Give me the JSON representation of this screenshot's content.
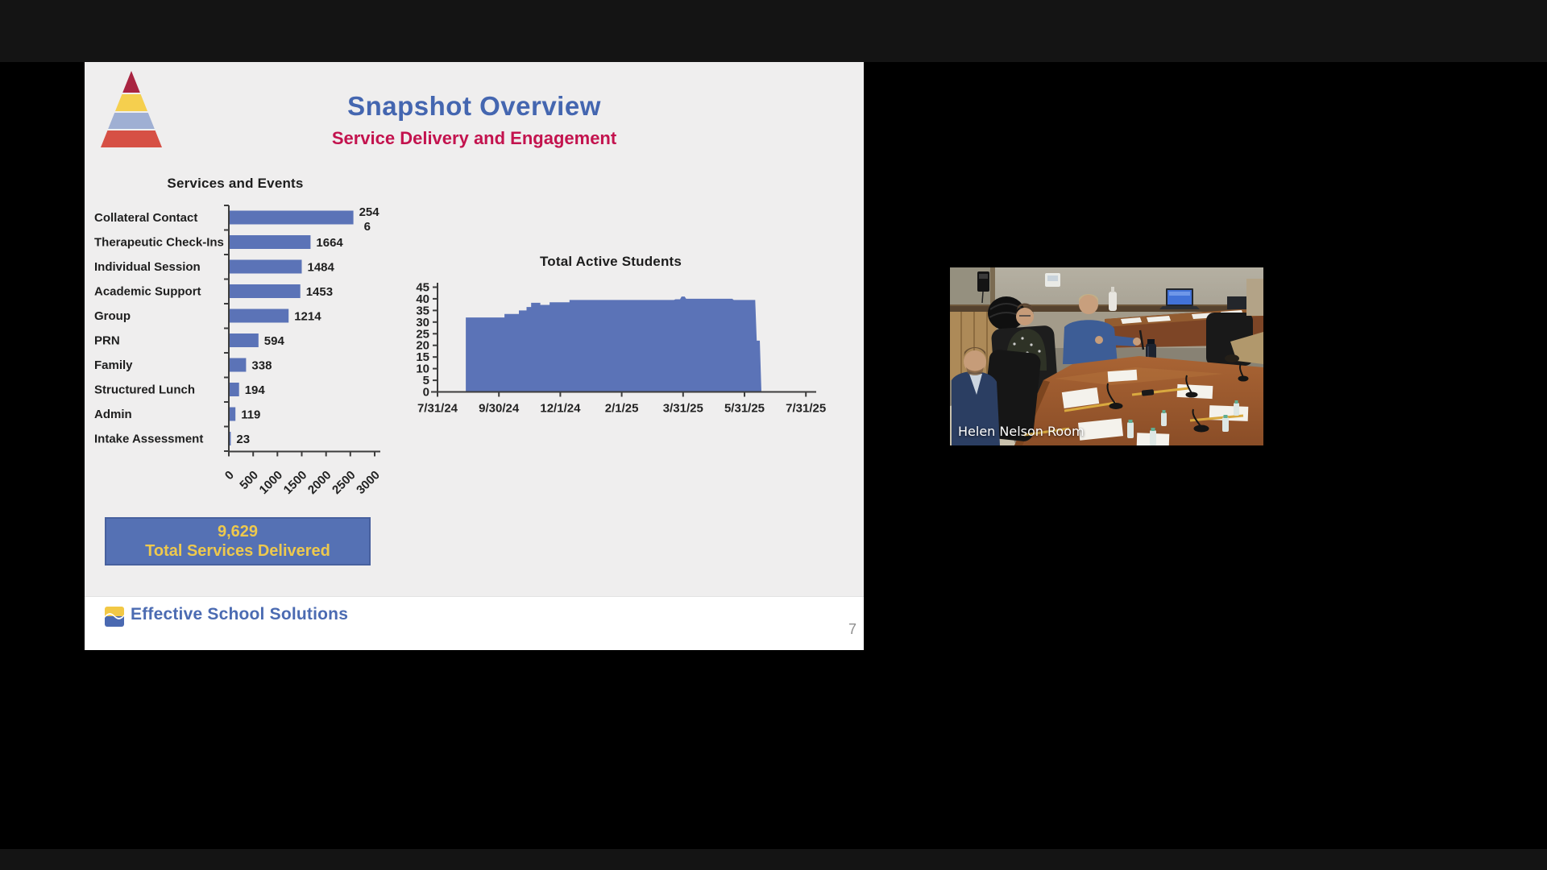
{
  "slide": {
    "title": "Snapshot Overview",
    "subtitle": "Service Delivery and Engagement",
    "summary": {
      "value": "9,629",
      "label": "Total Services Delivered"
    },
    "footer": {
      "brand": "Effective School Solutions",
      "page_number": "7"
    },
    "colors": {
      "title_blue": "#4466b0",
      "subtitle_crimson": "#c3134e",
      "bar_blue": "#5b73b7",
      "box_blue": "#5571b4",
      "box_text_yellow": "#eec94d",
      "brand_blue": "#4b6bb2",
      "slide_bg": "#efeeee",
      "footer_bg": "#ffffff",
      "page_number_gray": "#8f8f8f",
      "pyramid_bands": [
        "#a92441",
        "#f5cf4e",
        "#9fafd3",
        "#d65045"
      ]
    }
  },
  "chart_data": [
    {
      "type": "bar",
      "orientation": "horizontal",
      "title": "Services and Events",
      "categories": [
        "Collateral Contact",
        "Therapeutic Check-Ins",
        "Individual Session",
        "Academic Support",
        "Group",
        "PRN",
        "Family",
        "Structured Lunch",
        "Admin",
        "Intake Assessment"
      ],
      "values": [
        2546,
        1664,
        1484,
        1453,
        1214,
        594,
        338,
        194,
        119,
        23
      ],
      "value_label_lines": [
        [
          "254",
          "6"
        ],
        [
          "1664"
        ],
        [
          "1484"
        ],
        [
          "1453"
        ],
        [
          "1214"
        ],
        [
          "594"
        ],
        [
          "338"
        ],
        [
          "194"
        ],
        [
          "119"
        ],
        [
          "23"
        ]
      ],
      "xlim": [
        0,
        3000
      ],
      "xtick_labels": [
        "0",
        "500",
        "1000",
        "1500",
        "2000",
        "2500",
        "3000"
      ],
      "bar_color": "#5b73b7",
      "grid": false,
      "legend": "none"
    },
    {
      "type": "area",
      "title": "Total Active Students",
      "ylim": [
        0,
        45
      ],
      "ytick_labels": [
        "0",
        "5",
        "10",
        "15",
        "20",
        "25",
        "30",
        "35",
        "40",
        "45"
      ],
      "xtick_labels": [
        "7/31/24",
        "9/30/24",
        "12/1/24",
        "2/1/25",
        "3/31/25",
        "5/31/25",
        "7/31/25"
      ],
      "x_unit": "months_since_7/31/24",
      "points": [
        [
          0,
          0
        ],
        [
          0.92,
          0
        ],
        [
          0.92,
          32
        ],
        [
          2.18,
          32
        ],
        [
          2.18,
          33.5
        ],
        [
          2.65,
          33.5
        ],
        [
          2.65,
          35
        ],
        [
          2.9,
          35
        ],
        [
          2.9,
          36.5
        ],
        [
          3.05,
          36.5
        ],
        [
          3.05,
          38.3
        ],
        [
          3.35,
          38.3
        ],
        [
          3.35,
          37.4
        ],
        [
          3.65,
          37.4
        ],
        [
          3.65,
          38.5
        ],
        [
          4.3,
          38.5
        ],
        [
          4.3,
          39.5
        ],
        [
          7.7,
          39.5
        ],
        [
          7.75,
          39.8
        ],
        [
          7.9,
          39.8
        ],
        [
          7.95,
          41
        ],
        [
          8.05,
          41
        ],
        [
          8.1,
          40
        ],
        [
          9.6,
          40
        ],
        [
          9.65,
          39.5
        ],
        [
          10.35,
          39.5
        ],
        [
          10.4,
          22
        ],
        [
          10.5,
          22
        ],
        [
          10.55,
          0
        ],
        [
          12,
          0
        ]
      ],
      "area_color": "#5b73b7",
      "grid": false,
      "legend": "none"
    }
  ],
  "video": {
    "label": "Helen Nelson Room"
  }
}
